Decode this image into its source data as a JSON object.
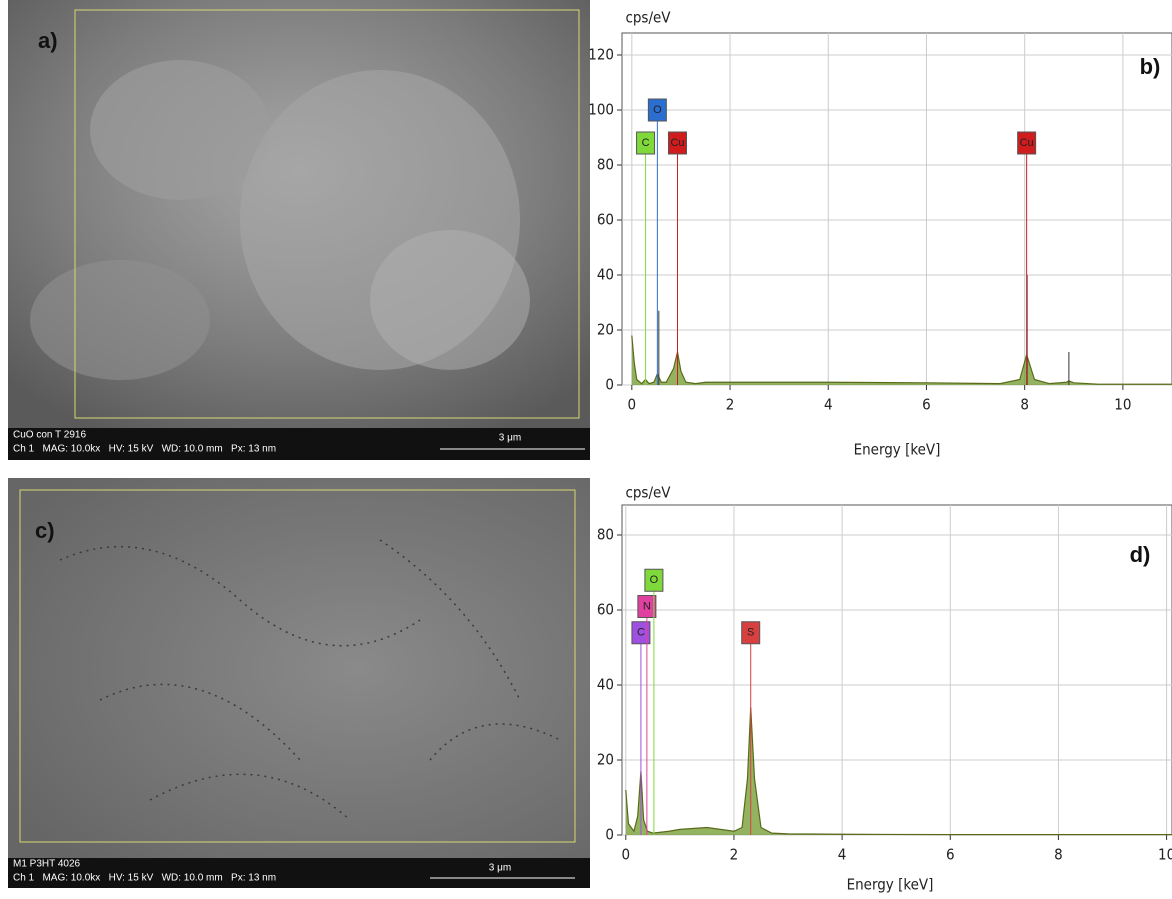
{
  "panels": [
    {
      "label": "a)",
      "sample": "CuO con T 2916",
      "info": "Ch 1   MAG: 10.0kx   HV: 15 kV   WD: 10.0 mm   Px: 13 nm",
      "scale": "3 μm"
    },
    {
      "label": "c)",
      "sample": "M1 P3HT 4026",
      "info": "Ch 1   MAG: 10.0kx   HV: 15 kV   WD: 10.0 mm   Px: 13 nm",
      "scale": "3 μm"
    }
  ],
  "chart_data": [
    {
      "type": "area",
      "label": "b)",
      "y_label": "cps/eV",
      "x_label": "Energy [keV]",
      "grid": true,
      "xlim": [
        -0.2,
        11
      ],
      "ylim": [
        0,
        128
      ],
      "xticks": [
        0,
        2,
        4,
        6,
        8,
        10
      ],
      "yticks": [
        0,
        20,
        40,
        60,
        80,
        100,
        120
      ],
      "color": "#6f9a2c",
      "x": [
        0,
        0.05,
        0.1,
        0.2,
        0.28,
        0.35,
        0.45,
        0.52,
        0.6,
        0.7,
        0.85,
        0.93,
        1.0,
        1.1,
        1.3,
        1.5,
        2,
        4,
        6,
        7.5,
        7.9,
        8.04,
        8.2,
        8.5,
        8.85,
        8.9,
        9.0,
        9.5,
        11
      ],
      "values": [
        18,
        8,
        2,
        0.5,
        2,
        0.5,
        1,
        4,
        1,
        1,
        6,
        12,
        5,
        1,
        0.5,
        1,
        1,
        1,
        0.8,
        0.5,
        2,
        11,
        2,
        0.5,
        1,
        1.5,
        0.8,
        0.3,
        0.3
      ],
      "stems": {
        "color": "#333333",
        "x": [
          0.55,
          0.93,
          8.05,
          8.9
        ],
        "values": [
          27,
          20,
          40,
          12
        ]
      },
      "elements": [
        {
          "name": "C",
          "energy": 0.28,
          "color": "#7fd93a"
        },
        {
          "name": "O",
          "energy": 0.52,
          "color": "#2a6fd0"
        },
        {
          "name": "Cu",
          "energy": 0.93,
          "color": "#d01c1c"
        },
        {
          "name": "Cu",
          "energy": 8.04,
          "color": "#d01c1c"
        }
      ]
    },
    {
      "type": "area",
      "label": "d)",
      "y_label": "cps/eV",
      "x_label": "Energy [keV]",
      "grid": true,
      "xlim": [
        -0.07,
        10.1
      ],
      "ylim": [
        0,
        88
      ],
      "xticks": [
        0,
        2,
        4,
        6,
        8,
        10
      ],
      "yticks": [
        0,
        20,
        40,
        60,
        80
      ],
      "color": "#6f9a2c",
      "x": [
        0,
        0.05,
        0.15,
        0.22,
        0.28,
        0.33,
        0.4,
        0.5,
        0.8,
        1,
        1.5,
        2,
        2.15,
        2.25,
        2.31,
        2.38,
        2.5,
        2.7,
        3,
        4,
        6,
        10.1
      ],
      "values": [
        12,
        3,
        1,
        5,
        17,
        4,
        1,
        0.5,
        1,
        1.5,
        2,
        1,
        2,
        15,
        34,
        15,
        2,
        0.5,
        0.3,
        0.2,
        0.1,
        0.1
      ],
      "elements": [
        {
          "name": "C",
          "energy": 0.28,
          "color": "#a050e0"
        },
        {
          "name": "N",
          "energy": 0.39,
          "color": "#e040a0"
        },
        {
          "name": "O",
          "energy": 0.52,
          "color": "#7fd93a"
        },
        {
          "name": "S",
          "energy": 2.31,
          "color": "#d84040"
        }
      ]
    }
  ]
}
